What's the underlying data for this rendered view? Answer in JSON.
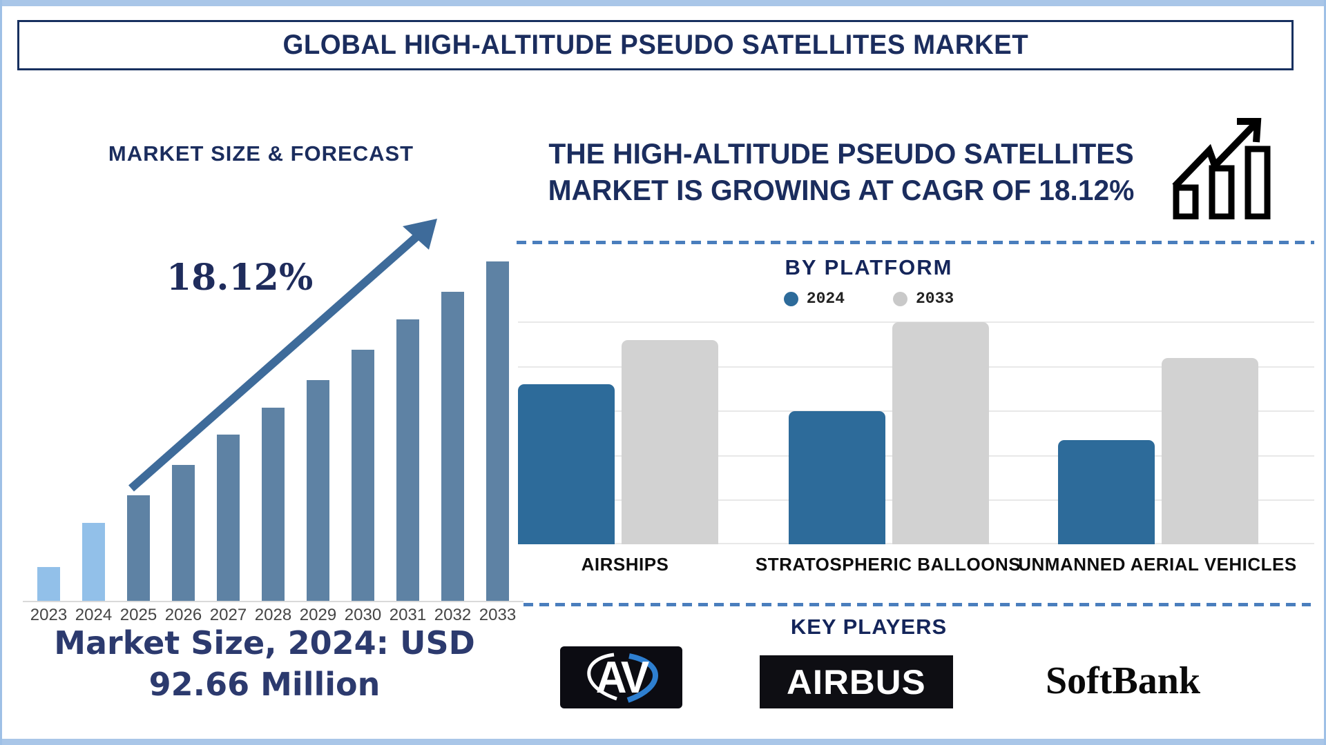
{
  "page": {
    "title": "GLOBAL HIGH-ALTITUDE PSEUDO SATELLITES MARKET"
  },
  "left_panel": {
    "heading": "MARKET SIZE & FORECAST",
    "growth_label": "18.12%",
    "market_size_line1": "Market Size, 2024: USD",
    "market_size_line2": "92.66 Million"
  },
  "right_panel": {
    "headline_line1": "THE HIGH-ALTITUDE PSEUDO SATELLITES",
    "headline_line2": "MARKET IS GROWING AT CAGR OF 18.12%",
    "platform_title": "BY PLATFORM",
    "key_players_title": "KEY PLAYERS",
    "logos": [
      {
        "name": "AeroVironment",
        "text": "AV"
      },
      {
        "name": "Airbus",
        "text": "AIRBUS"
      },
      {
        "name": "SoftBank",
        "text": "SoftBank"
      }
    ]
  },
  "colors": {
    "navy_text": "#1b2d5e",
    "title_border": "#17305f",
    "frame_band": "#a9c6e8",
    "light_blue_bar": "#92c0e9",
    "steel_blue_bar": "#5e82a4",
    "arrow_blue": "#3e6b9a",
    "dashed_separator": "#4a7ebd",
    "platform_2024_blue": "#2d6b9a",
    "platform_2033_gray": "#d2d2d2",
    "gridline": "#e8e8e8",
    "axis_line": "#d9d9d9",
    "icon_black": "#000000"
  },
  "chart_data": [
    {
      "type": "bar",
      "title": "MARKET SIZE & FORECAST",
      "categories": [
        "2023",
        "2024",
        "2025",
        "2026",
        "2027",
        "2028",
        "2029",
        "2030",
        "2031",
        "2032",
        "2033"
      ],
      "values_relative": [
        10,
        23,
        31,
        40,
        49,
        57,
        65,
        74,
        83,
        91,
        100
      ],
      "bar_colors": [
        "#92c0e9",
        "#92c0e9",
        "#5e82a4",
        "#5e82a4",
        "#5e82a4",
        "#5e82a4",
        "#5e82a4",
        "#5e82a4",
        "#5e82a4",
        "#5e82a4",
        "#5e82a4"
      ],
      "annotation": "18.12%",
      "note": "Market Size, 2024: USD 92.66 Million",
      "xlabel": "",
      "ylabel": "",
      "axis_values_shown": false,
      "grid": false
    },
    {
      "type": "grouped-bar",
      "title": "BY PLATFORM",
      "categories": [
        "AIRSHIPS",
        "STRATOSPHERIC BALLOONS",
        "UNMANNED AERIAL VEHICLES"
      ],
      "series": [
        {
          "name": "2024",
          "color": "#2d6b9a",
          "values_relative": [
            72,
            60,
            47
          ]
        },
        {
          "name": "2033",
          "color": "#d2d2d2",
          "values_relative": [
            92,
            100,
            84
          ]
        }
      ],
      "legend_position": "top",
      "grid": true,
      "axis_values_shown": false
    }
  ]
}
